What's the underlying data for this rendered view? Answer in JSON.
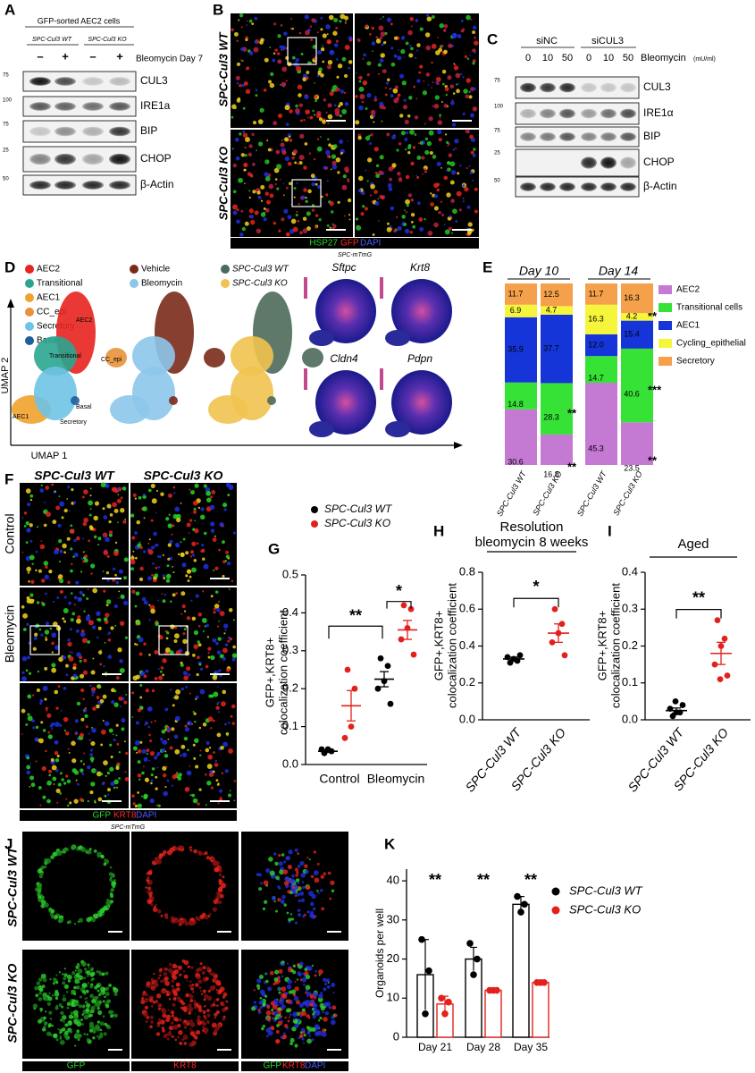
{
  "panel_labels": [
    "A",
    "B",
    "C",
    "D",
    "E",
    "F",
    "G",
    "H",
    "I",
    "J",
    "K"
  ],
  "A": {
    "header": "GFP-sorted AEC2 cells",
    "groups": [
      "SPC-Cul3 WT",
      "SPC-Cul3 KO"
    ],
    "treatment": [
      "–",
      "+",
      "–",
      "+"
    ],
    "treatment_label": "Bleomycin Day 7",
    "bands": [
      "CUL3",
      "IRE1a",
      "BIP",
      "CHOP",
      "β-Actin"
    ],
    "markers": [
      75,
      100,
      75,
      25,
      50
    ]
  },
  "B": {
    "rows": [
      "SPC-Cul3 WT",
      "SPC-Cul3 KO"
    ],
    "stain": [
      "HSP27",
      "GFP",
      "DAPI"
    ],
    "model": "SPC-mTmG"
  },
  "C": {
    "groups": [
      "siNC",
      "siCUL3"
    ],
    "doses": [
      0,
      10,
      50,
      0,
      10,
      50
    ],
    "treatment_label": "Bleomycin",
    "unit": "(mU/ml)",
    "bands": [
      "CUL3",
      "IRE1α",
      "BIP",
      "CHOP",
      "β-Actin"
    ],
    "markers": [
      75,
      100,
      75,
      25,
      50
    ]
  },
  "D": {
    "clusters": [
      {
        "name": "AEC2",
        "color": "#e8241f"
      },
      {
        "name": "Transitional",
        "color": "#2aa58f"
      },
      {
        "name": "AEC1",
        "color": "#f0a22c"
      },
      {
        "name": "CC_epi",
        "color": "#e8923a"
      },
      {
        "name": "Secretory",
        "color": "#6ec3e6"
      },
      {
        "name": "Basal",
        "color": "#1f5e9c"
      }
    ],
    "cluster_labels": [
      "AEC2",
      "Transitional",
      "CC_epi",
      "Basal",
      "AEC1",
      "Secretory"
    ],
    "conditions": [
      {
        "name": "Vehicle",
        "color": "#7a2a1a"
      },
      {
        "name": "Bleomycin",
        "color": "#8cc6ea"
      }
    ],
    "genotypes": [
      {
        "name": "SPC-Cul3 WT",
        "color": "#4c6a5a"
      },
      {
        "name": "SPC-Cul3 KO",
        "color": "#f1c24f"
      }
    ],
    "genes": [
      "Sftpc",
      "Krt8",
      "Cldn4",
      "Pdpn"
    ],
    "y_axis": "UMAP 2",
    "x_axis": "UMAP 1"
  },
  "F": {
    "columns": [
      "SPC-Cul3 WT",
      "SPC-Cul3 KO"
    ],
    "rows": [
      "Control",
      "Bleomycin"
    ],
    "stain": [
      "GFP",
      "KRT8",
      "DAPI"
    ],
    "model": "SPC-mTmG"
  },
  "J": {
    "rows": [
      "SPC-Cul3 WT",
      "SPC-Cul3 KO"
    ],
    "channels": [
      "GFP",
      "KRT8"
    ],
    "merge": [
      "GFP",
      "KRT8",
      "DAPI"
    ]
  },
  "chart_data": [
    {
      "type": "stacked_bar",
      "group_labels": [
        "Day 10",
        "Day 14"
      ],
      "categories": [
        "SPC-Cul3 WT",
        "SPC-Cul3 KO",
        "SPC-Cul3 WT",
        "SPC-Cul3 KO"
      ],
      "series": [
        {
          "name": "AEC2",
          "color": "#c47ad3",
          "values": [
            30.6,
            16.8,
            45.3,
            23.5
          ],
          "stars": [
            null,
            "**",
            null,
            "**"
          ]
        },
        {
          "name": "Transitional cells",
          "color": "#35e235",
          "values": [
            14.8,
            28.3,
            14.7,
            40.6
          ],
          "stars": [
            null,
            "**",
            null,
            "***"
          ]
        },
        {
          "name": "AEC1",
          "color": "#1535d8",
          "values": [
            35.9,
            37.7,
            12,
            15.4
          ],
          "value_labels": [
            "35.9",
            "37.7",
            "12.0",
            "15.4"
          ]
        },
        {
          "name": "Cycling_epithelial",
          "color": "#f5f53c",
          "values": [
            6.9,
            4.7,
            16.3,
            4.2
          ],
          "stars": [
            null,
            null,
            null,
            "**"
          ]
        },
        {
          "name": "Secretory",
          "color": "#f5a04b",
          "values": [
            11.7,
            12.5,
            11.7,
            16.3
          ]
        }
      ]
    },
    {
      "type": "dot",
      "legend": true,
      "y_label": [
        "GFP+,KRT8+",
        "colocalization coefficient"
      ],
      "categories": [
        "Control",
        "Bleomycin"
      ],
      "series": [
        {
          "name": "SPC-Cul3 WT",
          "color": "#000000",
          "values": [
            0.035,
            0.225
          ],
          "errors": [
            0.003,
            0.02
          ],
          "points": [
            [
              0.03,
              0.035,
              0.04,
              0.04
            ],
            [
              0.28,
              0.26,
              0.22,
              0.2,
              0.16
            ]
          ]
        },
        {
          "name": "SPC-Cul3 KO",
          "color": "#e3211c",
          "values": [
            0.155,
            0.355
          ],
          "errors": [
            0.04,
            0.025
          ],
          "points": [
            [
              0.25,
              0.2,
              0.1,
              0.07
            ],
            [
              0.42,
              0.41,
              0.36,
              0.33,
              0.29
            ]
          ]
        }
      ],
      "ylim": [
        0,
        0.5
      ],
      "yticks": [
        {
          "value": 0,
          "label": "0.0"
        },
        0.1,
        0.2,
        0.3,
        0.4,
        0.5
      ],
      "significance": [
        "**",
        "*"
      ]
    },
    {
      "type": "dot",
      "title": [
        "Resolution",
        "bleomycin 8 weeks"
      ],
      "y_label": [
        "GFP+,KRT8+",
        "colocalization coefficient"
      ],
      "categories": [
        "SPC-Cul3 WT",
        "SPC-Cul3 KO"
      ],
      "colors": [
        "#000000",
        "#e3211c"
      ],
      "values": [
        0.33,
        0.47
      ],
      "errors": [
        0.01,
        0.05
      ],
      "points": [
        [
          0.31,
          0.32,
          0.33,
          0.34,
          0.35
        ],
        [
          0.6,
          0.52,
          0.47,
          0.42,
          0.35
        ]
      ],
      "ylim": [
        0,
        0.8
      ],
      "yticks": [
        {
          "value": 0,
          "label": "0.0"
        },
        0.2,
        0.4,
        0.6,
        0.8
      ],
      "significance": [
        "*"
      ]
    },
    {
      "type": "dot",
      "title": [
        "Aged"
      ],
      "y_label": [
        "GFP+,KRT8+",
        "colocalization coefficient"
      ],
      "categories": [
        "SPC-Cul3 WT",
        "SPC-Cul3 KO"
      ],
      "colors": [
        "#000000",
        "#e3211c"
      ],
      "values": [
        0.025,
        0.18
      ],
      "errors": [
        0.007,
        0.03
      ],
      "points": [
        [
          0.01,
          0.02,
          0.02,
          0.03,
          0.04,
          0.05
        ],
        [
          0.27,
          0.22,
          0.2,
          0.15,
          0.12,
          0.11
        ]
      ],
      "ylim": [
        0,
        0.4
      ],
      "yticks": [
        {
          "value": 0,
          "label": "0.0"
        },
        0.1,
        0.2,
        0.3,
        0.4
      ],
      "significance": [
        "**"
      ]
    },
    {
      "type": "bar",
      "y_label": "Organoids per well",
      "categories": [
        "Day 21",
        "Day 28",
        "Day 35"
      ],
      "series": [
        {
          "name": "SPC-Cul3 WT",
          "color": "#000000",
          "values": [
            16,
            20,
            34
          ],
          "errors": [
            9,
            3,
            2
          ],
          "points": [
            [
              25,
              17,
              6
            ],
            [
              24,
              20,
              16
            ],
            [
              36,
              34,
              32
            ]
          ]
        },
        {
          "name": "SPC-Cul3 KO",
          "color": "#e3211c",
          "values": [
            8.5,
            12,
            14
          ],
          "errors": [
            2,
            0.5,
            0.3
          ],
          "points": [
            [
              10,
              9,
              6
            ],
            [
              12,
              12,
              12
            ],
            [
              14,
              14,
              14
            ]
          ]
        }
      ],
      "ylim": [
        0,
        43
      ],
      "yticks": [
        0,
        10,
        20,
        30,
        40
      ],
      "significance": [
        "**",
        "**",
        "**"
      ]
    }
  ]
}
